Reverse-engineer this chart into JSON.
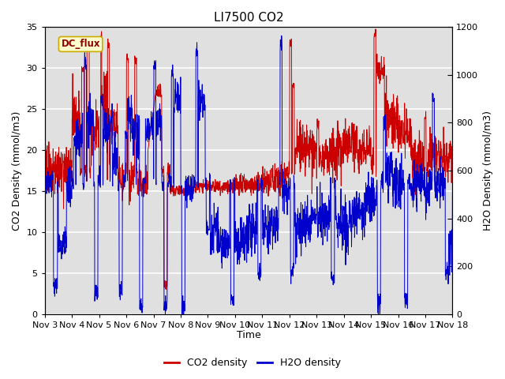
{
  "title": "LI7500 CO2",
  "xlabel": "Time",
  "ylabel_left": "CO2 Density (mmol/m3)",
  "ylabel_right": "H2O Density (mmol/m3)",
  "xlim": [
    0,
    15
  ],
  "ylim_left": [
    0,
    35
  ],
  "ylim_right": [
    0,
    1200
  ],
  "x_tick_labels": [
    "Nov 3",
    "Nov 4",
    "Nov 5",
    "Nov 6",
    "Nov 7",
    "Nov 8",
    "Nov 9",
    "Nov 10",
    "Nov 11",
    "Nov 12",
    "Nov 13",
    "Nov 14",
    "Nov 15",
    "Nov 16",
    "Nov 17",
    "Nov 18"
  ],
  "yticks_left": [
    0,
    5,
    10,
    15,
    20,
    25,
    30,
    35
  ],
  "yticks_right": [
    0,
    200,
    400,
    600,
    800,
    1000,
    1200
  ],
  "legend_labels": [
    "CO2 density",
    "H2O density"
  ],
  "annotation_text": "DC_flux",
  "co2_color": "#cc0000",
  "h2o_color": "#0000cc",
  "background_color": "#e0e0e0",
  "grid_color": "white",
  "title_fontsize": 11,
  "axis_label_fontsize": 9,
  "tick_fontsize": 8,
  "legend_fontsize": 9
}
